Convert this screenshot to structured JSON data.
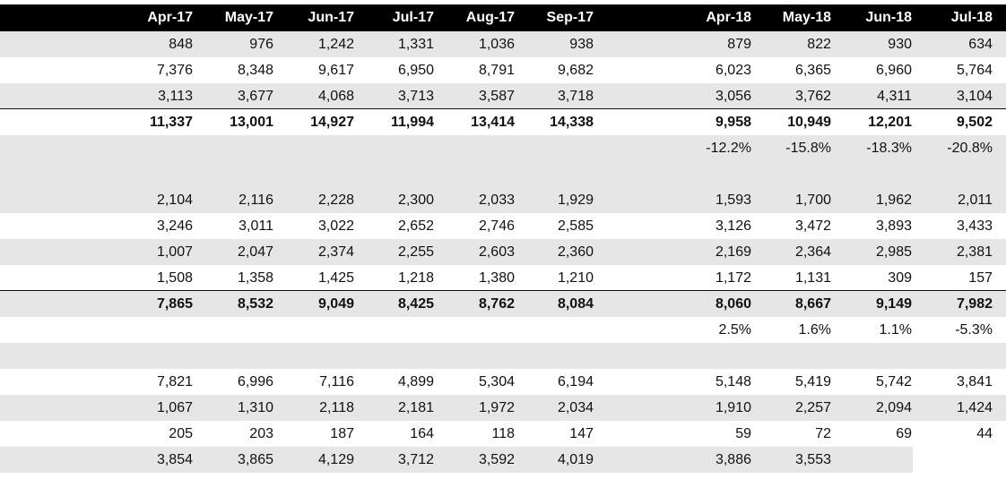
{
  "headers": [
    "Apr-17",
    "May-17",
    "Jun-17",
    "Jul-17",
    "Aug-17",
    "Sep-17",
    "Apr-18",
    "May-18",
    "Jun-18",
    "Jul-18"
  ],
  "rows": [
    {
      "shade": true,
      "bold": false,
      "cells": [
        "848",
        "976",
        "1,242",
        "1,331",
        "1,036",
        "938",
        "879",
        "822",
        "930",
        "634"
      ]
    },
    {
      "shade": false,
      "bold": false,
      "cells": [
        "7,376",
        "8,348",
        "9,617",
        "6,950",
        "8,791",
        "9,682",
        "6,023",
        "6,365",
        "6,960",
        "5,764"
      ]
    },
    {
      "shade": true,
      "bold": false,
      "cells": [
        "3,113",
        "3,677",
        "4,068",
        "3,713",
        "3,587",
        "3,718",
        "3,056",
        "3,762",
        "4,311",
        "3,104"
      ]
    },
    {
      "shade": false,
      "bold": true,
      "rule": true,
      "cells": [
        "11,337",
        "13,001",
        "14,927",
        "11,994",
        "13,414",
        "14,338",
        "9,958",
        "10,949",
        "12,201",
        "9,502"
      ]
    },
    {
      "shade": true,
      "bold": false,
      "cells": [
        "",
        "",
        "",
        "",
        "",
        "",
        "-12.2%",
        "-15.8%",
        "-18.3%",
        "-20.8%"
      ]
    },
    {
      "shade": true,
      "bold": false,
      "cells": [
        "",
        "",
        "",
        "",
        "",
        "",
        "",
        "",
        "",
        ""
      ]
    },
    {
      "shade": true,
      "bold": false,
      "cells": [
        "2,104",
        "2,116",
        "2,228",
        "2,300",
        "2,033",
        "1,929",
        "1,593",
        "1,700",
        "1,962",
        "2,011"
      ]
    },
    {
      "shade": false,
      "bold": false,
      "cells": [
        "3,246",
        "3,011",
        "3,022",
        "2,652",
        "2,746",
        "2,585",
        "3,126",
        "3,472",
        "3,893",
        "3,433"
      ]
    },
    {
      "shade": true,
      "bold": false,
      "cells": [
        "1,007",
        "2,047",
        "2,374",
        "2,255",
        "2,603",
        "2,360",
        "2,169",
        "2,364",
        "2,985",
        "2,381"
      ]
    },
    {
      "shade": false,
      "bold": false,
      "cells": [
        "1,508",
        "1,358",
        "1,425",
        "1,218",
        "1,380",
        "1,210",
        "1,172",
        "1,131",
        "309",
        "157"
      ]
    },
    {
      "shade": true,
      "bold": true,
      "rule": true,
      "cells": [
        "7,865",
        "8,532",
        "9,049",
        "8,425",
        "8,762",
        "8,084",
        "8,060",
        "8,667",
        "9,149",
        "7,982"
      ]
    },
    {
      "shade": false,
      "bold": false,
      "cells": [
        "",
        "",
        "",
        "",
        "",
        "",
        "2.5%",
        "1.6%",
        "1.1%",
        "-5.3%"
      ]
    },
    {
      "shade": true,
      "bold": false,
      "cells": [
        "",
        "",
        "",
        "",
        "",
        "",
        "",
        "",
        "",
        ""
      ]
    },
    {
      "shade": false,
      "bold": false,
      "cells": [
        "7,821",
        "6,996",
        "7,116",
        "4,899",
        "5,304",
        "6,194",
        "5,148",
        "5,419",
        "5,742",
        "3,841"
      ]
    },
    {
      "shade": true,
      "bold": false,
      "cells": [
        "1,067",
        "1,310",
        "2,118",
        "2,181",
        "1,972",
        "2,034",
        "1,910",
        "2,257",
        "2,094",
        "1,424"
      ]
    },
    {
      "shade": false,
      "bold": false,
      "cells": [
        "205",
        "203",
        "187",
        "164",
        "118",
        "147",
        "59",
        "72",
        "69",
        "44"
      ]
    },
    {
      "shade": true,
      "bold": false,
      "partial": true,
      "cells": [
        "3,854",
        "3,865",
        "4,129",
        "3,712",
        "3,592",
        "4,019",
        "3,886",
        "3,553",
        "",
        ""
      ]
    }
  ]
}
